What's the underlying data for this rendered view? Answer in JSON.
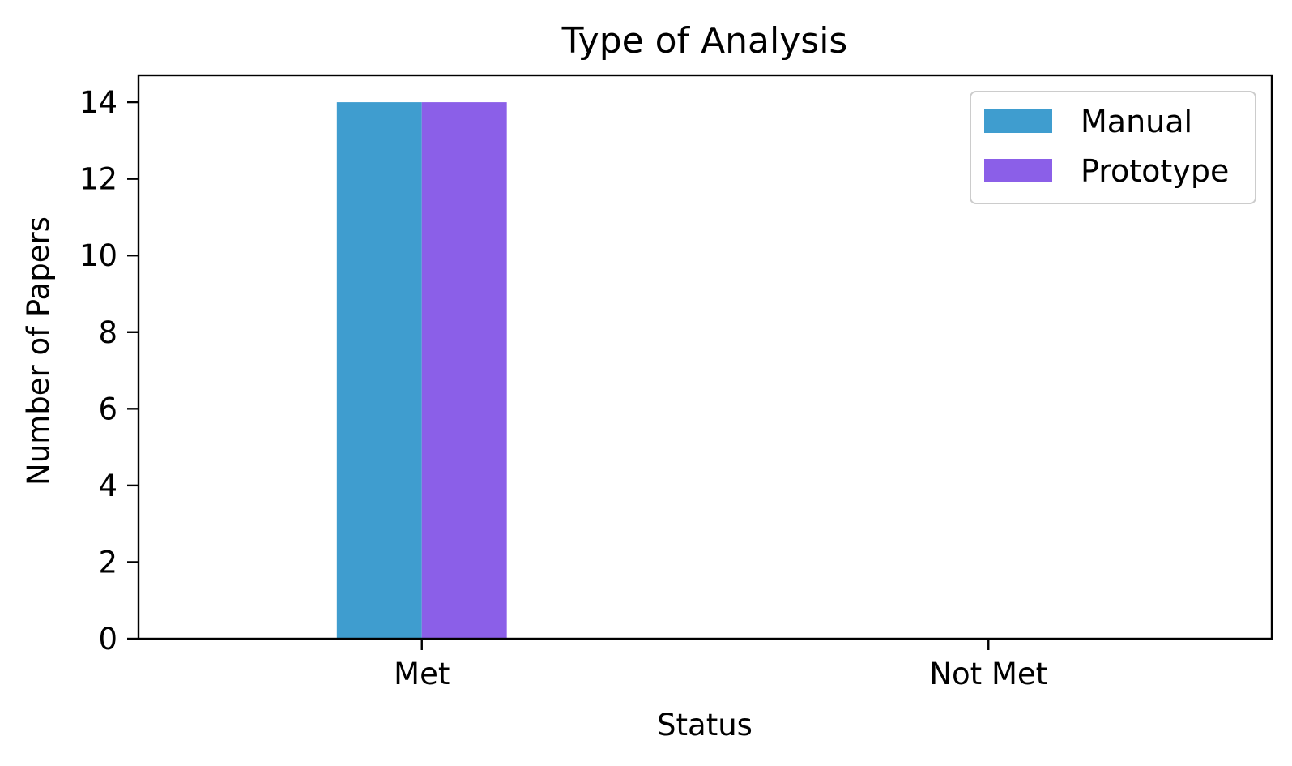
{
  "chart_data": {
    "type": "bar",
    "title": "Type of Analysis",
    "xlabel": "Status",
    "ylabel": "Number of Papers",
    "categories": [
      "Met",
      "Not Met"
    ],
    "series": [
      {
        "name": "Manual",
        "values": [
          14,
          0
        ],
        "color": "#3f9dcf"
      },
      {
        "name": "Prototype",
        "values": [
          14,
          0
        ],
        "color": "#8b5fe8"
      }
    ],
    "ylim": [
      0,
      14.7
    ],
    "yticks": [
      0,
      2,
      4,
      6,
      8,
      10,
      12,
      14
    ],
    "grid": false,
    "legend_position": "top-right"
  }
}
